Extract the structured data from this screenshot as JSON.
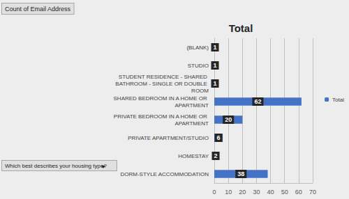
{
  "chart_data": {
    "type": "bar",
    "title": "Total",
    "orientation": "horizontal",
    "annotations": [
      "Count of Email Address",
      "Which best describes your housing type?"
    ],
    "categories": [
      "(BLANK)",
      "STUDIO",
      "STUDENT RESIDENCE - SHARED BATHROOM - SINGLE OR DOUBLE ROOM",
      "SHARED BEDROOM IN A HOME OR APARTMENT",
      "PRIVATE BEDROOM IN A HOME OR APARTMENT",
      "PRIVATE APARTMENT/STUDIO",
      "HOMESTAY",
      "DORM-STYLE ACCOMMODATION"
    ],
    "series": [
      {
        "name": "Total",
        "color": "#4472c4",
        "values": [
          1,
          1,
          1,
          62,
          20,
          6,
          2,
          38
        ]
      }
    ],
    "xlim": [
      0,
      70
    ],
    "xticks": [
      0,
      10,
      20,
      30,
      40,
      50,
      60,
      70
    ],
    "grid": true,
    "legend": "right",
    "data_labels": true
  }
}
